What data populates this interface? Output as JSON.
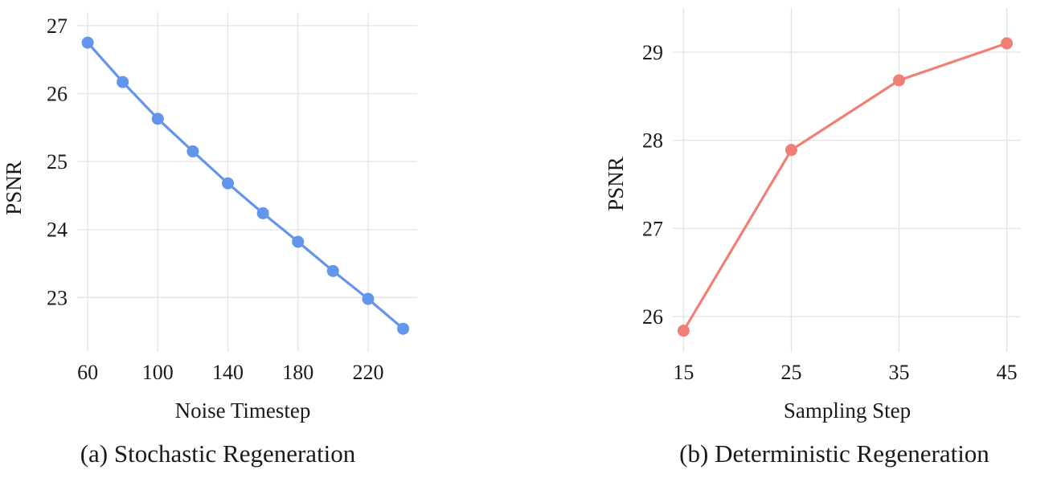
{
  "chart_data": [
    {
      "type": "line",
      "caption": "(a) Stochastic Regeneration",
      "xlabel": "Noise Timestep",
      "ylabel": "PSNR",
      "xticks": [
        60,
        100,
        140,
        180,
        220
      ],
      "yticks": [
        23,
        24,
        25,
        26,
        27
      ],
      "xlim": [
        54,
        248
      ],
      "ylim": [
        22.2,
        27.2
      ],
      "grid": true,
      "color": "#6495ED",
      "series": [
        {
          "x": [
            60,
            80,
            100,
            120,
            140,
            160,
            180,
            200,
            220,
            240
          ],
          "values": [
            26.75,
            26.17,
            25.63,
            25.15,
            24.68,
            24.24,
            23.82,
            23.39,
            22.98,
            22.54
          ]
        }
      ]
    },
    {
      "type": "line",
      "caption": "(b) Deterministic Regeneration",
      "xlabel": "Sampling Step",
      "ylabel": "PSNR",
      "xticks": [
        15,
        25,
        35,
        45
      ],
      "yticks": [
        26,
        27,
        28,
        29
      ],
      "xlim": [
        14,
        46.3
      ],
      "ylim": [
        25.6,
        29.5
      ],
      "grid": true,
      "color": "#F08076",
      "series": [
        {
          "x": [
            15,
            25,
            35,
            45
          ],
          "values": [
            25.84,
            27.89,
            28.68,
            29.1
          ]
        }
      ]
    }
  ]
}
